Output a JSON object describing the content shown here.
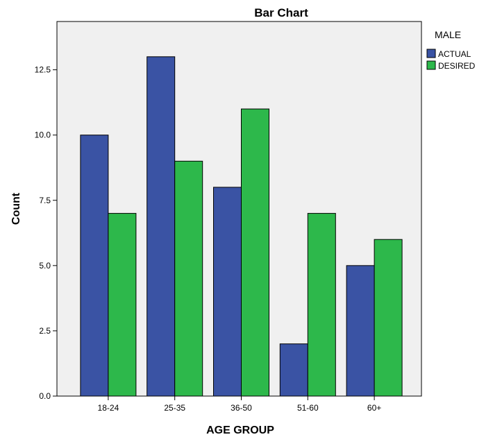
{
  "chart_data": {
    "type": "bar",
    "title": "Bar Chart",
    "xlabel": "AGE GROUP",
    "ylabel": "Count",
    "categories": [
      "18-24",
      "25-35",
      "36-50",
      "51-60",
      "60+"
    ],
    "series": [
      {
        "name": "ACTUAL",
        "color": "#3a53a4",
        "values": [
          10,
          13,
          8,
          2,
          5
        ]
      },
      {
        "name": "DESIRED",
        "color": "#2db84b",
        "values": [
          7,
          9,
          11,
          7,
          6
        ]
      }
    ],
    "ylim": [
      0,
      14.35
    ],
    "yticks": [
      0.0,
      2.5,
      5.0,
      7.5,
      10.0,
      12.5
    ],
    "ytick_labels": [
      "0.0",
      "2.5",
      "5.0",
      "7.5",
      "10.0",
      "12.5"
    ],
    "legend": {
      "title": "MALE",
      "position": "top-right"
    },
    "grid": false,
    "plot_background": "#f0f0f0"
  }
}
